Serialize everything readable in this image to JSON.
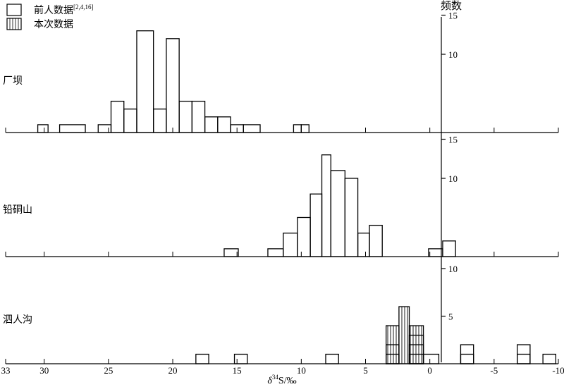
{
  "legend": [
    {
      "label": "前人数据",
      "sup": "[2,4,16]",
      "pattern": "open"
    },
    {
      "label": "本次数据",
      "pattern": "vertical-hatch"
    }
  ],
  "y_label": "频数",
  "chart_data": [
    {
      "type": "bar",
      "panel": "厂坝",
      "ylim": [
        0,
        15
      ],
      "y_ticks": [
        10,
        15
      ],
      "series": [
        {
          "name": "前人数据",
          "bins": [
            [
              30.5,
              29.7,
              1
            ],
            [
              28.8,
              26.8,
              1
            ],
            [
              25.8,
              24.8,
              1
            ],
            [
              24.8,
              23.8,
              4
            ],
            [
              23.8,
              22.8,
              3
            ],
            [
              22.8,
              21.5,
              13
            ],
            [
              21.5,
              20.5,
              3
            ],
            [
              20.5,
              19.5,
              12
            ],
            [
              19.5,
              18.5,
              4
            ],
            [
              18.5,
              17.5,
              4
            ],
            [
              17.5,
              16.5,
              2
            ],
            [
              16.5,
              15.5,
              2
            ],
            [
              15.5,
              14.5,
              1
            ],
            [
              14.5,
              13.2,
              1
            ],
            [
              10.6,
              10.0,
              1
            ],
            [
              10.0,
              9.4,
              1
            ]
          ]
        }
      ]
    },
    {
      "type": "bar",
      "panel": "铅硐山",
      "ylim": [
        0,
        15
      ],
      "y_ticks": [
        10,
        15
      ],
      "series": [
        {
          "name": "前人数据",
          "bins": [
            [
              16.0,
              14.9,
              1
            ],
            [
              12.6,
              11.4,
              1
            ],
            [
              11.4,
              10.3,
              3
            ],
            [
              10.3,
              9.3,
              5
            ],
            [
              9.3,
              8.4,
              8
            ],
            [
              8.4,
              7.7,
              13
            ],
            [
              7.7,
              6.6,
              11
            ],
            [
              6.6,
              5.6,
              10
            ],
            [
              5.6,
              4.7,
              3
            ],
            [
              4.7,
              3.7,
              4
            ],
            [
              0.1,
              -1.0,
              1
            ],
            [
              -1.0,
              -2.0,
              2
            ]
          ]
        }
      ]
    },
    {
      "type": "bar",
      "panel": "泗人沟",
      "ylim": [
        0,
        10
      ],
      "y_ticks": [
        5,
        10
      ],
      "series": [
        {
          "name": "前人数据",
          "bins": [
            [
              3.4,
              2.4,
              1
            ],
            [
              3.4,
              2.4,
              2
            ],
            [
              1.6,
              0.5,
              1
            ],
            [
              1.6,
              0.5,
              2
            ],
            [
              1.6,
              0.5,
              3
            ],
            [
              0.5,
              -0.7,
              1
            ],
            [
              18.2,
              17.2,
              1
            ],
            [
              15.2,
              14.2,
              1
            ],
            [
              8.1,
              7.1,
              1
            ],
            [
              -2.4,
              -3.4,
              1
            ],
            [
              -2.4,
              -3.4,
              2
            ],
            [
              -6.8,
              -7.8,
              1
            ],
            [
              -6.8,
              -7.8,
              2
            ],
            [
              -8.8,
              -9.8,
              1
            ]
          ]
        },
        {
          "name": "本次数据",
          "bins": [
            [
              3.4,
              2.4,
              4
            ],
            [
              2.4,
              1.6,
              6
            ],
            [
              1.6,
              0.5,
              4
            ]
          ]
        }
      ]
    }
  ],
  "x_axis": {
    "ticks": [
      33,
      30,
      25,
      20,
      15,
      10,
      5,
      0,
      -5,
      -10
    ],
    "label_delta": "δ",
    "label_sup": "34",
    "label_rest": "S/‰",
    "range": [
      33,
      -10
    ]
  }
}
